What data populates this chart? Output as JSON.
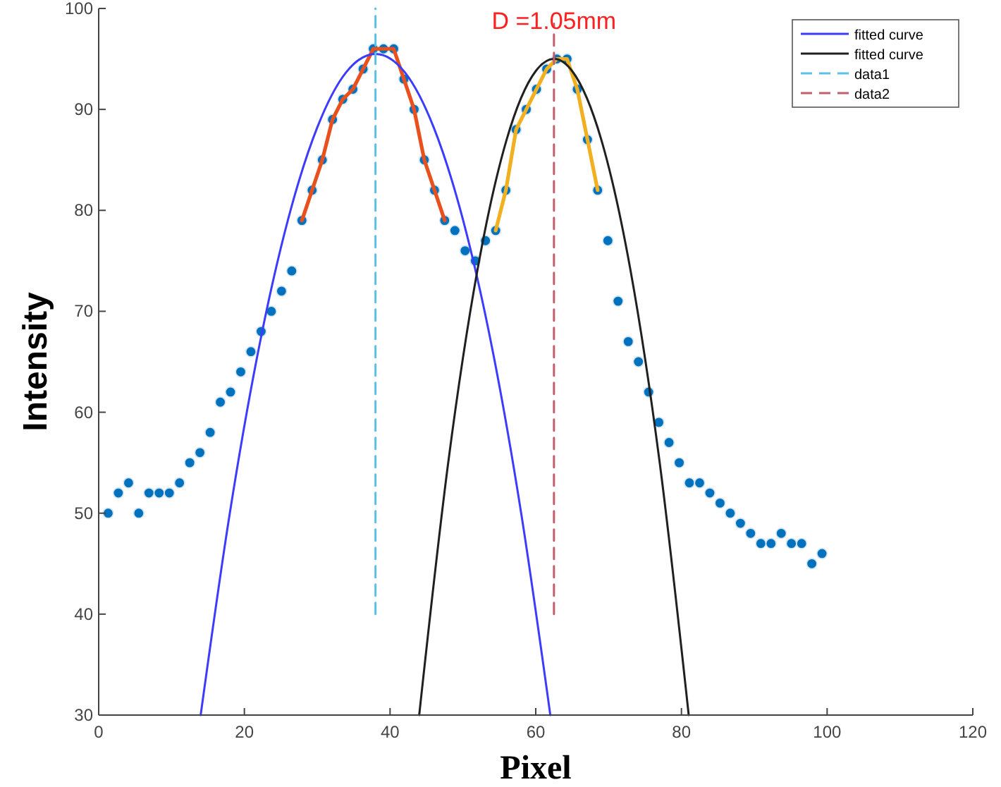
{
  "chart_data": {
    "type": "scatter",
    "xlabel": "Pixel",
    "ylabel": "Intensity",
    "xlim": [
      0,
      120
    ],
    "xticks": [
      0,
      20,
      40,
      60,
      80,
      100,
      120
    ],
    "ylim": [
      30,
      100
    ],
    "yticks": [
      30,
      40,
      50,
      60,
      70,
      80,
      90,
      100
    ],
    "grid": false,
    "legend": "top right",
    "annotations": [
      {
        "text": "D =1.05mm",
        "x": 62.5,
        "y": 98
      }
    ],
    "series": [
      {
        "marker": "circle",
        "color": "#0072bd",
        "x": [
          1.3,
          2.7,
          4.1,
          5.5,
          6.9,
          8.3,
          9.7,
          11.1,
          12.5,
          13.9,
          15.3,
          16.7,
          18.1,
          19.5,
          20.9,
          22.3,
          23.7,
          25.1,
          26.5,
          27.9,
          29.3,
          30.7,
          32.1,
          33.5,
          34.9,
          36.3,
          37.7,
          39.1,
          40.5,
          41.9,
          43.3,
          44.7,
          46.1,
          47.5,
          48.9,
          50.3,
          51.7,
          53.1,
          54.5,
          55.9,
          57.3,
          58.7,
          60.1,
          61.5,
          62.9,
          64.3,
          65.7,
          67.1,
          68.5,
          69.9,
          71.3,
          72.7,
          74.1,
          75.5,
          76.9,
          78.3,
          79.7,
          81.1,
          82.5,
          83.9,
          85.3,
          86.7,
          88.1,
          89.5,
          90.9,
          92.3,
          93.7,
          95.1,
          96.5,
          97.9,
          99.3
        ],
        "values": [
          50,
          52,
          53,
          50,
          52,
          52,
          52,
          53,
          55,
          56,
          58,
          61,
          62,
          64,
          66,
          68,
          70,
          72,
          74,
          79,
          82,
          85,
          89,
          91,
          92,
          94,
          96,
          96,
          96,
          93,
          90,
          85,
          82,
          79,
          78,
          76,
          75,
          77,
          78,
          82,
          88,
          90,
          92,
          94,
          95,
          95,
          92,
          87,
          82,
          77,
          71,
          67,
          65,
          62,
          59,
          57,
          55,
          53,
          53,
          52,
          51,
          50,
          49,
          48,
          47,
          47,
          48,
          47,
          47,
          45,
          46
        ]
      },
      {
        "type": "line",
        "color": "#e8501e",
        "line_style": "solid",
        "x": [
          27.9,
          29.3,
          30.7,
          32.1,
          33.5,
          34.9,
          36.3,
          37.7,
          39.1,
          40.5,
          41.9,
          43.3,
          44.7,
          46.1,
          47.5
        ],
        "values": [
          79,
          82,
          85,
          89,
          91,
          92,
          94,
          96,
          96,
          96,
          93,
          90,
          85,
          82,
          79
        ]
      },
      {
        "type": "line",
        "color": "#f0b020",
        "line_style": "solid",
        "x": [
          54.5,
          55.9,
          57.3,
          58.7,
          60.1,
          61.5,
          62.9,
          64.3,
          65.7,
          67.1,
          68.5
        ],
        "values": [
          78,
          82,
          88,
          90,
          92,
          94,
          95,
          95,
          92,
          87,
          82
        ]
      },
      {
        "type": "line",
        "name": "fitted curve",
        "color": "#3c3cff",
        "line_style": "solid",
        "x": [
          14,
          18,
          22,
          26,
          30,
          34,
          38,
          42,
          46,
          50,
          54,
          58,
          62
        ],
        "values": [
          30,
          50,
          66.4,
          79.1,
          88.2,
          93.7,
          95.5,
          93.7,
          88.2,
          79.1,
          66.4,
          50,
          30
        ]
      },
      {
        "type": "line",
        "name": "fitted curve",
        "color": "#202020",
        "line_style": "solid",
        "x": [
          44,
          48,
          52,
          56,
          60,
          62.5,
          65,
          69,
          73,
          77,
          81
        ],
        "values": [
          30,
          55.1,
          74.1,
          87,
          93.8,
          95,
          93.8,
          87,
          74.1,
          55.1,
          30
        ]
      },
      {
        "type": "line",
        "name": "data1",
        "color": "#5bbfe6",
        "line_style": "dashed",
        "x": [
          38,
          38
        ],
        "values": [
          40,
          100
        ]
      },
      {
        "type": "line",
        "name": "data2",
        "color": "#c0606e",
        "line_style": "dashed",
        "x": [
          62.5,
          62.5
        ],
        "values": [
          40,
          98.5
        ]
      }
    ]
  }
}
